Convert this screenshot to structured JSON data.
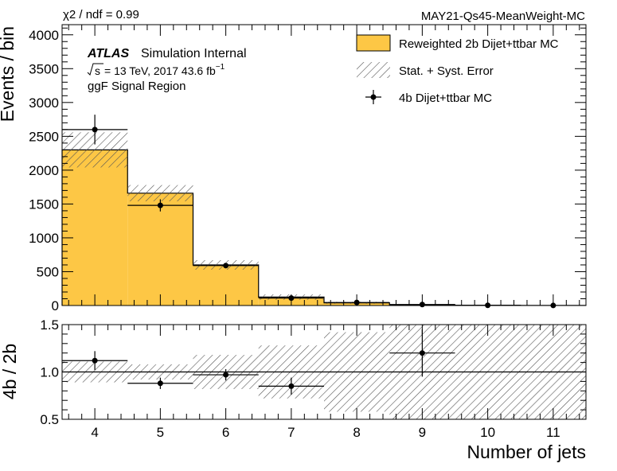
{
  "header": {
    "chi2": "χ2 / ndf = 0.99",
    "tag": "MAY21-Qs45-MeanWeight-MC"
  },
  "annotation": {
    "atlas": "ATLAS",
    "internal": "Simulation Internal",
    "energy": "= 13 TeV, 2017 43.6 fb",
    "energy_sup": "−1",
    "region": "ggF Signal Region"
  },
  "legend": {
    "items": [
      {
        "label": "Reweighted 2b Dijet+ttbar MC"
      },
      {
        "label": "Stat. + Syst. Error"
      },
      {
        "label": "4b Dijet+ttbar MC"
      }
    ]
  },
  "colors": {
    "fill": "#fdc745",
    "line": "#000000",
    "hatch": "#555555"
  },
  "chart_data": [
    {
      "type": "bar",
      "name": "main",
      "xlabel": "Number of jets",
      "ylabel": "Events / bin",
      "xlim": [
        3.5,
        11.5
      ],
      "ylim": [
        0,
        4150
      ],
      "x_bins": [
        4,
        5,
        6,
        7,
        8,
        9,
        10,
        11
      ],
      "bin_width": 1,
      "y_ticks": [
        0,
        500,
        1000,
        1500,
        2000,
        2500,
        3000,
        3500,
        4000
      ],
      "series": [
        {
          "name": "Reweighted 2b Dijet+ttbar MC",
          "kind": "histogram",
          "values": [
            2300,
            1660,
            600,
            125,
            40,
            10,
            3,
            1
          ]
        },
        {
          "name": "Stat. + Syst. Error",
          "kind": "band",
          "errors": [
            260,
            120,
            70,
            40,
            15,
            8,
            3,
            1
          ]
        },
        {
          "name": "4b Dijet+ttbar MC",
          "kind": "points",
          "values": [
            2600,
            1480,
            590,
            110,
            45,
            15,
            3,
            1
          ],
          "errors": [
            220,
            90,
            35,
            35,
            10,
            6,
            2,
            1
          ]
        }
      ]
    },
    {
      "type": "scatter",
      "name": "ratio",
      "xlabel": "Number of jets",
      "ylabel": "4b / 2b",
      "xlim": [
        3.5,
        11.5
      ],
      "ylim": [
        0.5,
        1.5
      ],
      "x_ticks": [
        4,
        5,
        6,
        7,
        8,
        9,
        10,
        11
      ],
      "y_ticks": [
        0.5,
        1.0,
        1.5
      ],
      "y_tick_labels": [
        "0.5",
        "1.0",
        "1.5"
      ],
      "reference_line": 1.0,
      "band_halfwidth": [
        0.11,
        0.08,
        0.18,
        0.28,
        0.42,
        0.5,
        0.5,
        0.5
      ],
      "points": {
        "x": [
          4,
          5,
          6,
          7,
          9
        ],
        "y": [
          1.12,
          0.88,
          0.97,
          0.85,
          1.2
        ],
        "errors": [
          0.1,
          0.06,
          0.06,
          0.09,
          0.25
        ]
      }
    }
  ]
}
